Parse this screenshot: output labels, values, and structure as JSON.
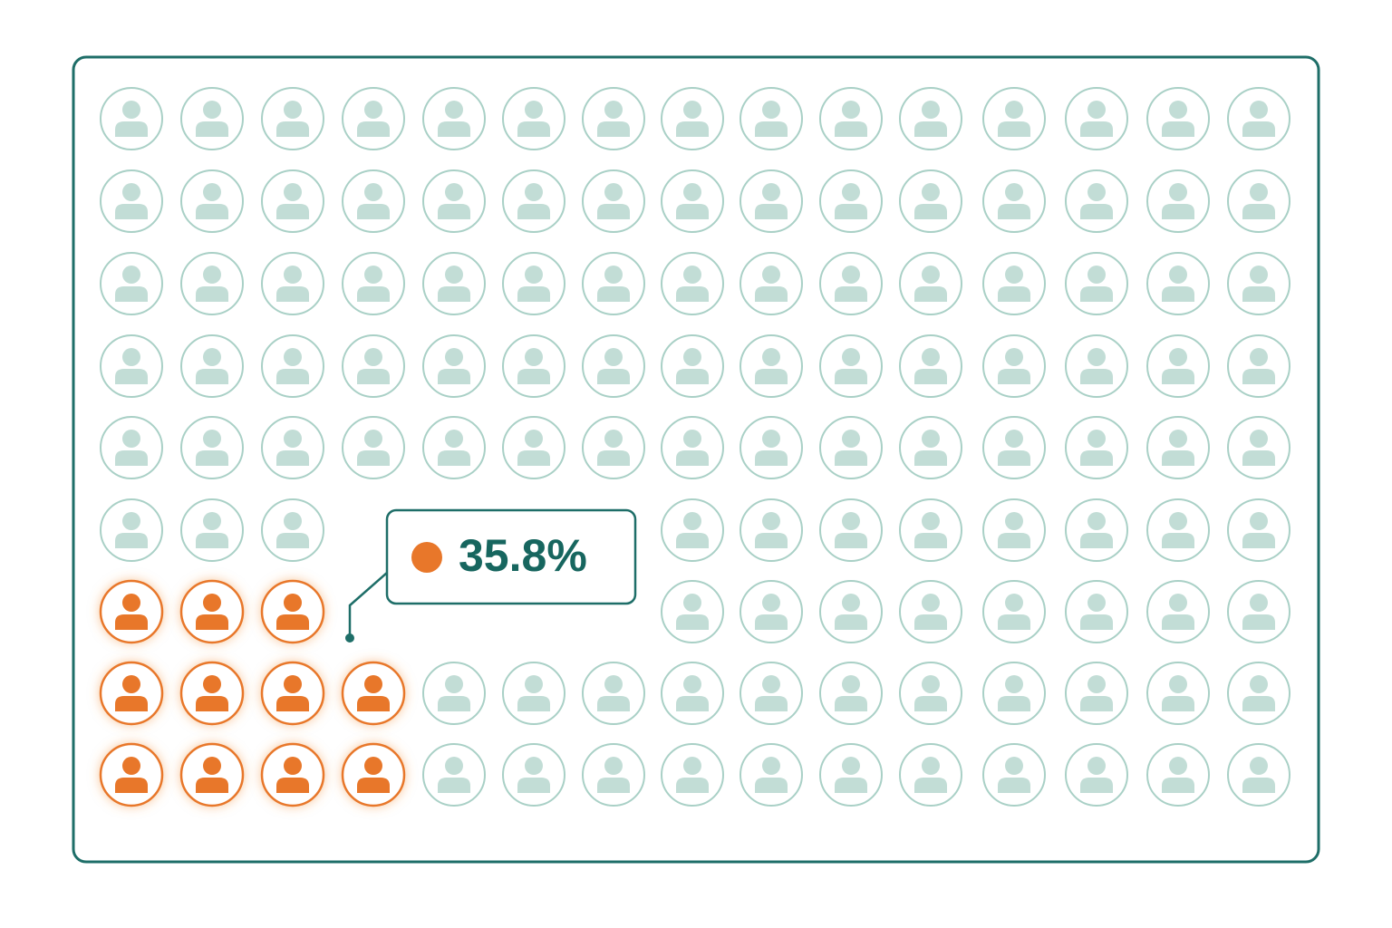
{
  "callout": {
    "label": "35.8%"
  }
}
